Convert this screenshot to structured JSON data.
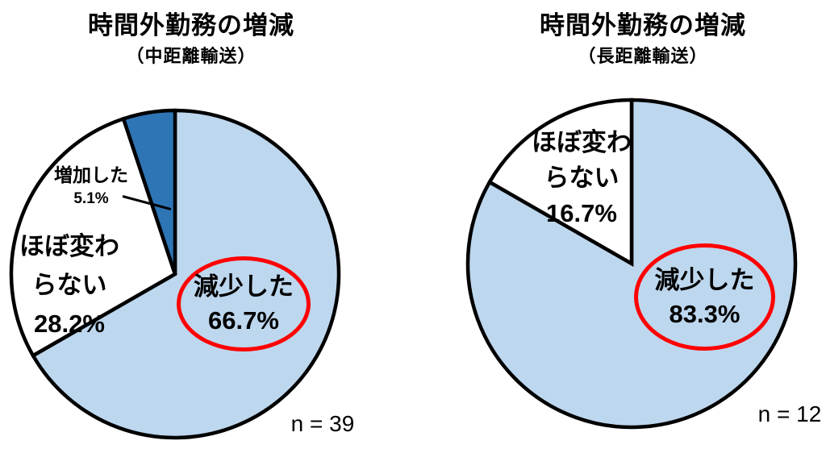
{
  "figure": {
    "background_color": "#ffffff",
    "text_color": "#000000"
  },
  "chart_data": [
    {
      "type": "pie",
      "title": "時間外勤務の増減",
      "subtitle": "（中距離輸送）",
      "sample_label": "n = 39",
      "start_angle": "top",
      "direction": "clockwise",
      "stroke_color": "#000000",
      "highlight_color": "#ff0000",
      "slices": [
        {
          "label": "減少した",
          "value": 66.7,
          "pct_label": "66.7%",
          "color": "#bdd7ee",
          "highlighted": true,
          "leader_line": false
        },
        {
          "label": "ほぼ変わらない",
          "label_display": "ほぼ変わ\nらない",
          "value": 28.2,
          "pct_label": "28.2%",
          "color": "#ffffff",
          "highlighted": false,
          "leader_line": false
        },
        {
          "label": "増加した",
          "value": 5.1,
          "pct_label": "5.1%",
          "color": "#2e75b6",
          "highlighted": false,
          "leader_line": true
        }
      ]
    },
    {
      "type": "pie",
      "title": "時間外勤務の増減",
      "subtitle": "（長距離輸送）",
      "sample_label": "n = 12",
      "start_angle": "top",
      "direction": "clockwise",
      "stroke_color": "#000000",
      "highlight_color": "#ff0000",
      "slices": [
        {
          "label": "減少した",
          "value": 83.3,
          "pct_label": "83.3%",
          "color": "#bdd7ee",
          "highlighted": true,
          "leader_line": false
        },
        {
          "label": "ほぼ変わらない",
          "label_display": "ほぼ変わ\nらない",
          "value": 16.7,
          "pct_label": "16.7%",
          "color": "#ffffff",
          "highlighted": false,
          "leader_line": false
        }
      ]
    }
  ]
}
